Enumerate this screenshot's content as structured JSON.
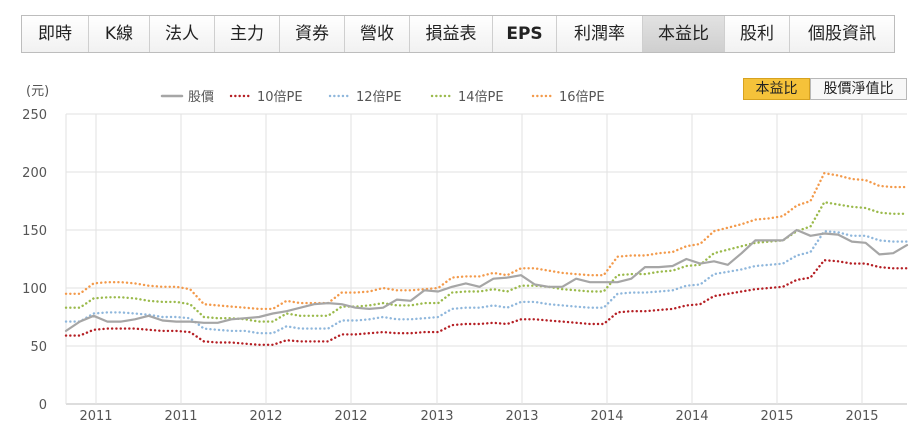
{
  "tabs": [
    {
      "label": "即時",
      "name": "tab-realtime"
    },
    {
      "label": "K線",
      "name": "tab-kline"
    },
    {
      "label": "法人",
      "name": "tab-institutional"
    },
    {
      "label": "主力",
      "name": "tab-major"
    },
    {
      "label": "資券",
      "name": "tab-margin"
    },
    {
      "label": "營收",
      "name": "tab-revenue"
    },
    {
      "label": "損益表",
      "name": "tab-income"
    },
    {
      "label": "EPS",
      "name": "tab-eps"
    },
    {
      "label": "利潤率",
      "name": "tab-margin-rate"
    },
    {
      "label": "本益比",
      "name": "tab-pe"
    },
    {
      "label": "股利",
      "name": "tab-dividend"
    },
    {
      "label": "個股資訊",
      "name": "tab-info"
    }
  ],
  "active_tab": "本益比",
  "toggles": {
    "pe_label": "本益比",
    "pb_label": "股價淨值比"
  },
  "colors": {
    "price": "#a6a6a6",
    "pe10": "#b51f24",
    "pe12": "#8fb7dc",
    "pe14": "#9bba4c",
    "pe16": "#f39a4b",
    "grid": "#e2e2e2",
    "toggle_on": "#f5c23a"
  },
  "chart_data": {
    "type": "line",
    "ylabel": "(元)",
    "ylim": [
      0,
      250
    ],
    "yticks": [
      0,
      50,
      100,
      150,
      200,
      250
    ],
    "xticks": [
      "2011",
      "2011",
      "2012",
      "2012",
      "2013",
      "2013",
      "2014",
      "2014",
      "2015",
      "2015"
    ],
    "grid": true,
    "legend_position": "top",
    "series": [
      {
        "name": "股價",
        "color": "#a6a6a6",
        "style": "solid",
        "values": [
          63,
          71,
          76,
          71,
          71,
          73,
          76,
          72,
          71,
          71,
          70,
          70,
          73,
          74,
          75,
          78,
          80,
          83,
          86,
          87,
          86,
          83,
          82,
          83,
          90,
          89,
          98,
          97,
          101,
          104,
          101,
          108,
          109,
          111,
          103,
          101,
          101,
          108,
          105,
          105,
          105,
          108,
          118,
          118,
          119,
          125,
          121,
          123,
          120,
          130,
          141,
          141,
          141,
          150,
          145,
          147,
          146,
          140,
          139,
          129,
          130,
          137
        ]
      },
      {
        "name": "10倍PE",
        "color": "#b51f24",
        "style": "dotted",
        "values": [
          59,
          59,
          64,
          65,
          65,
          65,
          64,
          63,
          63,
          62,
          54,
          53,
          53,
          52,
          51,
          51,
          55,
          54,
          54,
          54,
          60,
          60,
          61,
          62,
          61,
          61,
          62,
          62,
          68,
          69,
          69,
          70,
          69,
          73,
          73,
          72,
          71,
          70,
          69,
          69,
          79,
          80,
          80,
          81,
          82,
          85,
          86,
          93,
          95,
          97,
          99,
          100,
          101,
          107,
          109,
          124,
          123,
          121,
          121,
          118,
          117,
          117
        ]
      },
      {
        "name": "12倍PE",
        "color": "#8fb7dc",
        "style": "dotted",
        "values": [
          71,
          71,
          78,
          79,
          79,
          78,
          77,
          75,
          75,
          74,
          65,
          64,
          63,
          63,
          61,
          61,
          67,
          65,
          65,
          65,
          72,
          72,
          73,
          75,
          73,
          73,
          74,
          75,
          82,
          83,
          83,
          85,
          83,
          88,
          88,
          86,
          85,
          84,
          83,
          83,
          95,
          96,
          96,
          97,
          98,
          102,
          103,
          112,
          114,
          116,
          119,
          120,
          121,
          128,
          131,
          149,
          148,
          145,
          145,
          141,
          140,
          140
        ]
      },
      {
        "name": "14倍PE",
        "color": "#9bba4c",
        "style": "dotted",
        "values": [
          83,
          83,
          91,
          92,
          92,
          91,
          89,
          88,
          88,
          86,
          75,
          74,
          74,
          73,
          71,
          71,
          78,
          76,
          76,
          76,
          84,
          84,
          85,
          87,
          85,
          85,
          87,
          87,
          96,
          97,
          97,
          99,
          97,
          102,
          102,
          101,
          99,
          98,
          97,
          97,
          111,
          112,
          112,
          114,
          115,
          119,
          120,
          130,
          133,
          136,
          139,
          140,
          141,
          149,
          153,
          174,
          172,
          170,
          169,
          165,
          164,
          164
        ]
      },
      {
        "name": "16倍PE",
        "color": "#f39a4b",
        "style": "dotted",
        "values": [
          95,
          95,
          104,
          105,
          105,
          104,
          102,
          101,
          101,
          99,
          86,
          85,
          84,
          83,
          82,
          82,
          89,
          87,
          87,
          87,
          96,
          96,
          97,
          100,
          98,
          98,
          99,
          100,
          109,
          110,
          110,
          113,
          111,
          117,
          117,
          115,
          113,
          112,
          111,
          111,
          127,
          128,
          128,
          130,
          131,
          136,
          138,
          149,
          152,
          155,
          159,
          160,
          162,
          171,
          175,
          199,
          197,
          194,
          193,
          188,
          187,
          187
        ]
      }
    ]
  }
}
